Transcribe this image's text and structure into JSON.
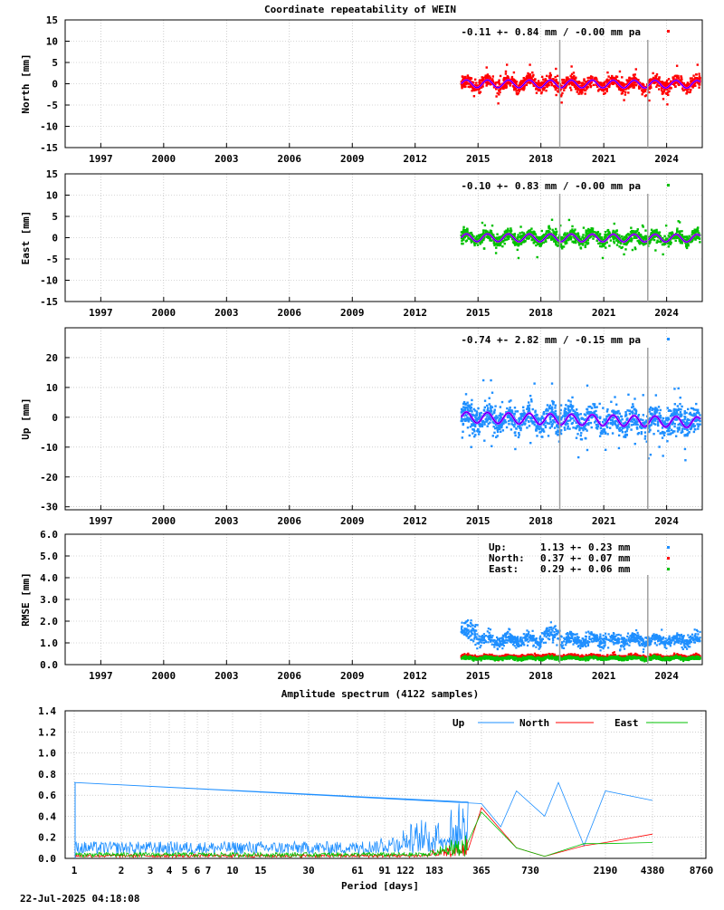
{
  "footer": {
    "timestamp": "22-Jul-2025 04:18:08"
  },
  "chart_data": [
    {
      "type": "scatter",
      "title": "Coordinate repeatability of WEIN",
      "ylabel": "North [mm]",
      "ylim": [
        -15,
        15
      ],
      "yticks": [
        15,
        10,
        5,
        0,
        -5,
        -10,
        -15
      ],
      "xlim": [
        1995.3,
        2025.7
      ],
      "xticks": [
        1997,
        2000,
        2003,
        2006,
        2009,
        2012,
        2015,
        2018,
        2021,
        2024
      ],
      "vlines": [
        2018.9,
        2023.1
      ],
      "grid": true,
      "legend": {
        "text": "-0.11 +- 0.84 mm / -0.00 mm pa",
        "color": "#ff0000",
        "position": "top-right"
      },
      "series": [
        {
          "color": "#ff0000",
          "x_range": [
            2014.2,
            2025.6
          ],
          "center": 0.0,
          "spread": 1.3,
          "outlier_spread": 4.0
        },
        {
          "color": "#0000ff",
          "role": "model",
          "amplitude": 0.9,
          "period_years": 1.0,
          "offset": 0.0,
          "slope": -0.01
        }
      ]
    },
    {
      "type": "scatter",
      "title": "",
      "ylabel": "East [mm]",
      "ylim": [
        -15,
        15
      ],
      "yticks": [
        15,
        10,
        5,
        0,
        -5,
        -10,
        -15
      ],
      "xlim": [
        1995.3,
        2025.7
      ],
      "xticks": [
        1997,
        2000,
        2003,
        2006,
        2009,
        2012,
        2015,
        2018,
        2021,
        2024
      ],
      "vlines": [
        2018.9,
        2023.1
      ],
      "grid": true,
      "legend": {
        "text": "-0.10 +- 0.83 mm / -0.00 mm pa",
        "color": "#00c000",
        "position": "top-right"
      },
      "series": [
        {
          "color": "#00c000",
          "x_range": [
            2014.2,
            2025.6
          ],
          "center": 0.0,
          "spread": 1.3,
          "outlier_spread": 4.0
        },
        {
          "color": "#0000ff",
          "role": "model",
          "amplitude": 0.9,
          "period_years": 1.0,
          "offset": 0.0,
          "slope": -0.01
        }
      ]
    },
    {
      "type": "scatter",
      "title": "",
      "ylabel": "Up [mm]",
      "ylim": [
        -31,
        30
      ],
      "yticks": [
        20,
        10,
        0,
        -10,
        -20,
        -30
      ],
      "xlim": [
        1995.3,
        2025.7
      ],
      "xticks": [
        1997,
        2000,
        2003,
        2006,
        2009,
        2012,
        2015,
        2018,
        2021,
        2024
      ],
      "vlines": [
        2018.9,
        2023.1
      ],
      "grid": true,
      "legend": {
        "text": "-0.74 +- 2.82 mm / -0.15 mm pa",
        "color": "#1e8fff",
        "position": "top-right"
      },
      "series": [
        {
          "color": "#1e8fff",
          "x_range": [
            2014.2,
            2025.6
          ],
          "center": -0.5,
          "spread": 4.0,
          "outlier_spread": 12.0
        },
        {
          "color": "#0000ff",
          "role": "model",
          "amplitude": 1.8,
          "period_years": 1.0,
          "offset": 0.0,
          "slope": -0.15
        }
      ]
    },
    {
      "type": "scatter",
      "title": "",
      "ylabel": "RMSE [mm]",
      "ylim": [
        0,
        6
      ],
      "yticks": [
        "6.0",
        "5.0",
        "4.0",
        "3.0",
        "2.0",
        "1.0",
        "0.0"
      ],
      "xlim": [
        1995.3,
        2025.7
      ],
      "xticks": [
        1997,
        2000,
        2003,
        2006,
        2009,
        2012,
        2015,
        2018,
        2021,
        2024
      ],
      "vlines": [
        2018.9,
        2023.1
      ],
      "grid": true,
      "legend_entries": [
        {
          "label": "Up:",
          "value": "1.13 +- 0.23 mm",
          "color": "#1e8fff"
        },
        {
          "label": "North:",
          "value": "0.37 +- 0.07 mm",
          "color": "#ff0000"
        },
        {
          "label": "East:",
          "value": "0.29 +- 0.06 mm",
          "color": "#00c000"
        }
      ],
      "series": [
        {
          "name": "Up",
          "color": "#1e8fff",
          "x_range": [
            2014.2,
            2025.6
          ],
          "mean": 1.13,
          "sd": 0.23
        },
        {
          "name": "North",
          "color": "#ff0000",
          "x_range": [
            2014.2,
            2025.6
          ],
          "mean": 0.37,
          "sd": 0.07
        },
        {
          "name": "East",
          "color": "#00c000",
          "x_range": [
            2014.2,
            2025.6
          ],
          "mean": 0.29,
          "sd": 0.06
        }
      ]
    },
    {
      "type": "line",
      "title": "Amplitude spectrum (4122 samples)",
      "xlabel": "Period [days]",
      "xscale": "reciprocal",
      "ylim": [
        0,
        1.4
      ],
      "yticks": [
        "1.4",
        "1.2",
        "1.0",
        "0.8",
        "0.6",
        "0.4",
        "0.2",
        "0.0"
      ],
      "xticks": [
        1,
        2,
        3,
        4,
        5,
        6,
        7,
        10,
        15,
        30,
        61,
        91,
        122,
        183,
        365,
        730,
        2190,
        4380,
        8760
      ],
      "xlim_days": [
        1,
        8760
      ],
      "grid": true,
      "legend_placement": "top-right",
      "series": [
        {
          "name": "Up",
          "color": "#1e8fff",
          "noise_level": 0.1,
          "peak_days": [
            365,
            4380
          ],
          "peaks": [
            [
              1,
              0.72
            ],
            [
              365,
              0.52
            ],
            [
              480,
              0.3
            ],
            [
              600,
              0.64
            ],
            [
              900,
              0.4
            ],
            [
              1100,
              0.72
            ],
            [
              1600,
              0.12
            ],
            [
              2190,
              0.64
            ],
            [
              4380,
              0.55
            ]
          ]
        },
        {
          "name": "North",
          "color": "#ff0000",
          "noise_level": 0.025,
          "peaks": [
            [
              365,
              0.48
            ],
            [
              600,
              0.1
            ],
            [
              900,
              0.02
            ],
            [
              1600,
              0.12
            ],
            [
              2190,
              0.15
            ],
            [
              4380,
              0.23
            ]
          ]
        },
        {
          "name": "East",
          "color": "#00c000",
          "noise_level": 0.035,
          "peaks": [
            [
              365,
              0.44
            ],
            [
              600,
              0.1
            ],
            [
              900,
              0.02
            ],
            [
              1600,
              0.14
            ],
            [
              2190,
              0.14
            ],
            [
              4380,
              0.15
            ]
          ]
        }
      ]
    }
  ]
}
